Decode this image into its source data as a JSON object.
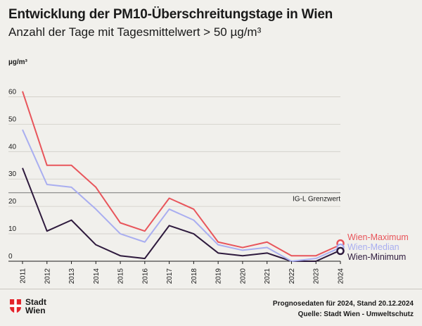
{
  "header": {
    "title": "Entwicklung der PM10-Überschreitungstage in Wien",
    "subtitle": "Anzahl der Tage mit Tagesmittelwert > 50 µg/m³"
  },
  "chart_data": {
    "type": "line",
    "ylabel": "µg/m³",
    "xlabel": "",
    "ylim": [
      0,
      65
    ],
    "yticks": [
      0,
      10,
      20,
      30,
      40,
      50,
      60
    ],
    "categories": [
      "2011",
      "2012",
      "2013",
      "2014",
      "2015",
      "2016",
      "2017",
      "2018",
      "2019",
      "2020",
      "2021",
      "2022",
      "2023",
      "2024"
    ],
    "series": [
      {
        "name": "Wien-Maximum",
        "color": "#e8555b",
        "values": [
          62,
          35,
          35,
          27,
          14,
          11,
          23,
          19,
          7,
          5,
          7,
          2,
          2,
          6
        ]
      },
      {
        "name": "Wien-Median",
        "color": "#a9aef0",
        "values": [
          48,
          28,
          27,
          19,
          10,
          7,
          19,
          15,
          6,
          4,
          5,
          0,
          1,
          5
        ]
      },
      {
        "name": "Wien-Minimum",
        "color": "#2e1a3d",
        "values": [
          34,
          11,
          15,
          6,
          2,
          1,
          13,
          10,
          3,
          2,
          3,
          0,
          0,
          4
        ]
      }
    ],
    "threshold": {
      "value": 25,
      "label": "IG-L Grenzwert",
      "color": "#777777"
    },
    "grid": true
  },
  "footer": {
    "logo_text": "Stadt Wien",
    "note": "Prognosedaten für 2024, Stand 20.12.2024",
    "source": "Quelle: Stadt Wien - Umweltschutz"
  }
}
